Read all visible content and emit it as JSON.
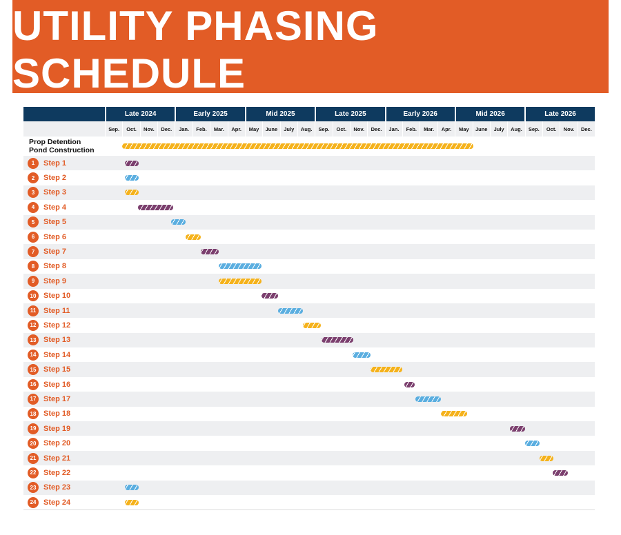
{
  "title": "UTILITY PHASING SCHEDULE",
  "colors": {
    "purple": "#7b3f6e",
    "blue": "#5aaee0",
    "yellow": "#f5b21b",
    "accent": "#e25c26",
    "navy": "#0e3a5f"
  },
  "chart_data": {
    "type": "gantt",
    "periods": [
      "Late 2024",
      "Early 2025",
      "Mid 2025",
      "Late 2025",
      "Early 2026",
      "Mid 2026",
      "Late 2026"
    ],
    "months": [
      "Sep.",
      "Oct.",
      "Nov.",
      "Dec.",
      "Jan.",
      "Feb.",
      "Mar.",
      "Apr.",
      "May",
      "June",
      "July",
      "Aug.",
      "Sep.",
      "Oct.",
      "Nov.",
      "Dec.",
      "Jan.",
      "Feb.",
      "Mar.",
      "Apr.",
      "May",
      "June",
      "July",
      "Aug.",
      "Sep.",
      "Oct.",
      "Nov.",
      "Dec."
    ],
    "unit": "months from Sep. 2024",
    "tasks": [
      {
        "label": "Prop Detention Pond Construction",
        "line1": "Prop Detention",
        "line2": "Pond Construction",
        "start": 1.0,
        "end": 21.05,
        "color": "yellow"
      },
      {
        "num": "1",
        "label": "Step 1",
        "start": 1.15,
        "end": 1.95,
        "color": "purple"
      },
      {
        "num": "2",
        "label": "Step 2",
        "start": 1.15,
        "end": 1.95,
        "color": "blue"
      },
      {
        "num": "3",
        "label": "Step 3",
        "start": 1.15,
        "end": 1.95,
        "color": "yellow"
      },
      {
        "num": "4",
        "label": "Step 4",
        "start": 1.9,
        "end": 3.9,
        "color": "purple"
      },
      {
        "num": "5",
        "label": "Step 5",
        "start": 3.8,
        "end": 4.6,
        "color": "blue"
      },
      {
        "num": "6",
        "label": "Step 6",
        "start": 4.6,
        "end": 5.5,
        "color": "yellow"
      },
      {
        "num": "7",
        "label": "Step 7",
        "start": 5.5,
        "end": 6.5,
        "color": "purple"
      },
      {
        "num": "8",
        "label": "Step 8",
        "start": 6.5,
        "end": 8.95,
        "color": "blue"
      },
      {
        "num": "9",
        "label": "Step 9",
        "start": 6.5,
        "end": 8.95,
        "color": "yellow"
      },
      {
        "num": "10",
        "label": "Step 10",
        "start": 8.95,
        "end": 9.9,
        "color": "purple"
      },
      {
        "num": "11",
        "label": "Step 11",
        "start": 9.9,
        "end": 11.3,
        "color": "blue"
      },
      {
        "num": "12",
        "label": "Step 12",
        "start": 11.3,
        "end": 12.35,
        "color": "yellow"
      },
      {
        "num": "13",
        "label": "Step 13",
        "start": 12.4,
        "end": 14.2,
        "color": "purple"
      },
      {
        "num": "14",
        "label": "Step 14",
        "start": 14.15,
        "end": 15.2,
        "color": "blue"
      },
      {
        "num": "15",
        "label": "Step 15",
        "start": 15.2,
        "end": 17.0,
        "color": "yellow"
      },
      {
        "num": "16",
        "label": "Step 16",
        "start": 17.1,
        "end": 17.7,
        "color": "purple"
      },
      {
        "num": "17",
        "label": "Step 17",
        "start": 17.75,
        "end": 19.2,
        "color": "blue"
      },
      {
        "num": "18",
        "label": "Step 18",
        "start": 19.2,
        "end": 20.7,
        "color": "yellow"
      },
      {
        "num": "19",
        "label": "Step 19",
        "start": 23.15,
        "end": 24.0,
        "color": "purple"
      },
      {
        "num": "20",
        "label": "Step 20",
        "start": 24.0,
        "end": 24.85,
        "color": "blue"
      },
      {
        "num": "21",
        "label": "Step 21",
        "start": 24.85,
        "end": 25.65,
        "color": "yellow"
      },
      {
        "num": "22",
        "label": "Step 22",
        "start": 25.6,
        "end": 26.45,
        "color": "purple"
      },
      {
        "num": "23",
        "label": "Step 23",
        "start": 1.15,
        "end": 1.95,
        "color": "blue"
      },
      {
        "num": "24",
        "label": "Step 24",
        "start": 1.15,
        "end": 1.95,
        "color": "yellow"
      }
    ]
  }
}
